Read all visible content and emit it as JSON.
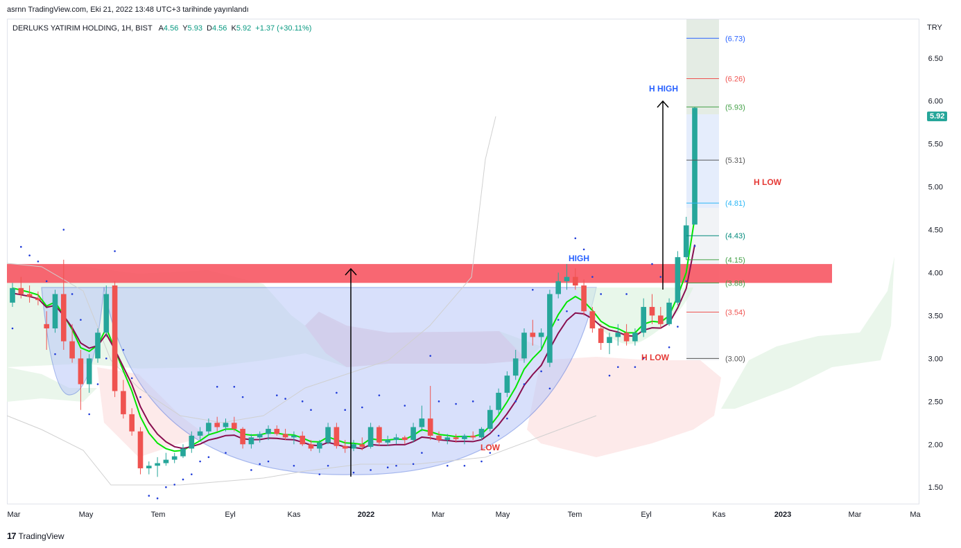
{
  "header": {
    "credit": "asrnn TradingView.com, Eki 21, 2022 13:48 UTC+3 tarihinde yayınlandı",
    "symbol": "DERLUKS YATIRIM HOLDING, 1H, BIST",
    "ohlc": [
      {
        "label": "A",
        "value": "4.56"
      },
      {
        "label": "Y",
        "value": "5.93"
      },
      {
        "label": "D",
        "value": "4.56"
      },
      {
        "label": "K",
        "value": "5.92"
      }
    ],
    "change": "+1.37 (+30.11%)"
  },
  "currency": "TRY",
  "last_price": "5.92",
  "footer": {
    "brand": "TradingView",
    "mark": "17"
  },
  "colors": {
    "up": "#26a69a",
    "down": "#ef5350",
    "resistance_band": "#f7525f",
    "cup_fill": "#b9c8f9",
    "ema_fast": "#00e600",
    "ema_slow": "#880e4f",
    "cloud_green": "#e8f5e9",
    "cloud_red": "#fde8e8",
    "psar": "#1e3ad8"
  },
  "chart_data": {
    "type": "candlestick",
    "y_axis": {
      "min": 1.3,
      "max": 6.95,
      "ticks": [
        "1.50",
        "2.00",
        "2.50",
        "3.00",
        "3.50",
        "4.00",
        "4.50",
        "5.00",
        "5.50",
        "6.00",
        "6.50"
      ]
    },
    "x_axis": {
      "labels": [
        "Mar",
        "May",
        "Tem",
        "Eyl",
        "Kas",
        "2022",
        "Mar",
        "May",
        "Tem",
        "Eyl",
        "Kas",
        "2023",
        "Mar",
        "Ma"
      ]
    },
    "candles": [
      [
        3.65,
        3.88,
        3.6,
        3.82
      ],
      [
        3.82,
        3.95,
        3.7,
        3.75
      ],
      [
        3.75,
        3.85,
        3.65,
        3.72
      ],
      [
        3.7,
        3.78,
        3.62,
        3.68
      ],
      [
        3.4,
        3.55,
        3.1,
        3.35
      ],
      [
        3.35,
        3.8,
        3.3,
        3.75
      ],
      [
        3.75,
        4.15,
        3.1,
        3.2
      ],
      [
        3.2,
        3.4,
        2.95,
        3.0
      ],
      [
        3.0,
        3.1,
        2.4,
        2.7
      ],
      [
        2.7,
        3.05,
        2.6,
        3.0
      ],
      [
        3.0,
        3.35,
        2.95,
        3.3
      ],
      [
        3.3,
        3.85,
        3.25,
        3.75
      ],
      [
        3.85,
        3.9,
        2.55,
        2.62
      ],
      [
        2.62,
        2.75,
        2.3,
        2.35
      ],
      [
        2.35,
        2.42,
        2.1,
        2.15
      ],
      [
        2.15,
        2.2,
        1.65,
        1.72
      ],
      [
        1.72,
        1.8,
        1.65,
        1.75
      ],
      [
        1.75,
        1.85,
        1.62,
        1.78
      ],
      [
        1.78,
        1.9,
        1.75,
        1.82
      ],
      [
        1.82,
        1.9,
        1.78,
        1.86
      ],
      [
        1.86,
        2.0,
        1.84,
        1.95
      ],
      [
        1.95,
        2.15,
        1.9,
        2.1
      ],
      [
        2.1,
        2.2,
        2.05,
        2.15
      ],
      [
        2.15,
        2.3,
        2.1,
        2.25
      ],
      [
        2.25,
        2.32,
        2.15,
        2.2
      ],
      [
        2.2,
        2.3,
        2.15,
        2.25
      ],
      [
        2.25,
        2.32,
        2.15,
        2.18
      ],
      [
        2.18,
        2.2,
        1.95,
        2.0
      ],
      [
        2.0,
        2.12,
        1.95,
        2.08
      ],
      [
        2.08,
        2.15,
        2.02,
        2.12
      ],
      [
        2.12,
        2.22,
        2.05,
        2.18
      ],
      [
        2.18,
        2.22,
        2.1,
        2.12
      ],
      [
        2.12,
        2.18,
        2.05,
        2.08
      ],
      [
        2.08,
        2.15,
        2.0,
        2.1
      ],
      [
        2.1,
        2.15,
        1.98,
        2.0
      ],
      [
        2.0,
        2.05,
        1.92,
        1.95
      ],
      [
        1.95,
        2.05,
        1.9,
        2.02
      ],
      [
        2.02,
        2.25,
        2.0,
        2.2
      ],
      [
        2.2,
        2.25,
        1.95,
        1.98
      ],
      [
        1.98,
        2.05,
        1.9,
        1.95
      ],
      [
        1.95,
        2.05,
        1.92,
        2.0
      ],
      [
        2.0,
        2.08,
        1.93,
        1.97
      ],
      [
        1.97,
        2.25,
        1.95,
        2.2
      ],
      [
        2.2,
        2.22,
        1.98,
        2.02
      ],
      [
        2.02,
        2.1,
        1.98,
        2.05
      ],
      [
        2.05,
        2.12,
        2.0,
        2.08
      ],
      [
        2.08,
        2.1,
        2.0,
        2.05
      ],
      [
        2.05,
        2.25,
        2.02,
        2.2
      ],
      [
        2.2,
        2.45,
        2.15,
        2.3
      ],
      [
        2.3,
        2.68,
        2.05,
        2.1
      ],
      [
        2.1,
        2.15,
        2.02,
        2.05
      ],
      [
        2.05,
        2.12,
        2.0,
        2.08
      ],
      [
        2.08,
        2.12,
        2.02,
        2.06
      ],
      [
        2.06,
        2.12,
        2.0,
        2.1
      ],
      [
        2.1,
        2.15,
        2.05,
        2.08
      ],
      [
        2.08,
        2.2,
        2.05,
        2.18
      ],
      [
        2.18,
        2.45,
        2.15,
        2.4
      ],
      [
        2.4,
        2.65,
        2.35,
        2.6
      ],
      [
        2.6,
        2.85,
        2.55,
        2.8
      ],
      [
        2.8,
        3.1,
        2.75,
        3.0
      ],
      [
        3.0,
        3.35,
        2.95,
        3.3
      ],
      [
        3.3,
        3.45,
        3.15,
        3.25
      ],
      [
        3.25,
        3.35,
        3.1,
        3.3
      ],
      [
        2.95,
        3.8,
        2.9,
        3.75
      ],
      [
        3.75,
        4.0,
        3.7,
        3.9
      ],
      [
        3.9,
        4.1,
        3.8,
        3.95
      ],
      [
        3.95,
        4.05,
        3.8,
        3.85
      ],
      [
        3.85,
        3.92,
        3.5,
        3.55
      ],
      [
        3.55,
        3.6,
        3.3,
        3.35
      ],
      [
        3.35,
        3.4,
        3.1,
        3.18
      ],
      [
        3.18,
        3.3,
        3.05,
        3.25
      ],
      [
        3.25,
        3.4,
        3.15,
        3.3
      ],
      [
        3.3,
        3.4,
        3.15,
        3.2
      ],
      [
        3.2,
        3.35,
        3.15,
        3.3
      ],
      [
        3.3,
        3.7,
        3.25,
        3.6
      ],
      [
        3.6,
        3.75,
        3.4,
        3.5
      ],
      [
        3.5,
        3.6,
        3.35,
        3.4
      ],
      [
        3.4,
        3.7,
        3.38,
        3.65
      ],
      [
        3.65,
        4.25,
        3.62,
        4.18
      ],
      [
        4.18,
        4.65,
        4.15,
        4.55
      ],
      [
        4.56,
        5.93,
        4.56,
        5.92
      ]
    ],
    "levels": [
      {
        "value": 6.73,
        "label": "(6.73)",
        "color": "#2962ff"
      },
      {
        "value": 6.26,
        "label": "(6.26)",
        "color": "#ef5350"
      },
      {
        "value": 5.93,
        "label": "(5.93)",
        "color": "#43a047"
      },
      {
        "value": 5.31,
        "label": "(5.31)",
        "color": "#555555"
      },
      {
        "value": 4.81,
        "label": "(4.81)",
        "color": "#29b6f6"
      },
      {
        "value": 4.43,
        "label": "(4.43)",
        "color": "#00897b"
      },
      {
        "value": 4.15,
        "label": "(4.15)",
        "color": "#43a047"
      },
      {
        "value": 3.88,
        "label": "(3.88)",
        "color": "#43a047"
      },
      {
        "value": 3.54,
        "label": "(3.54)",
        "color": "#ef5350"
      },
      {
        "value": 3.0,
        "label": "(3.00)",
        "color": "#555555"
      }
    ],
    "resistance_band": [
      3.88,
      4.1
    ],
    "annotations": [
      {
        "text": "HIGH",
        "color": "#2962ff"
      },
      {
        "text": "LOW",
        "color": "#e53935"
      },
      {
        "text": "H HIGH",
        "color": "#2962ff"
      },
      {
        "text": "H LOW",
        "color": "#e53935"
      },
      {
        "text": "H LOW",
        "color": "#e53935"
      }
    ]
  }
}
